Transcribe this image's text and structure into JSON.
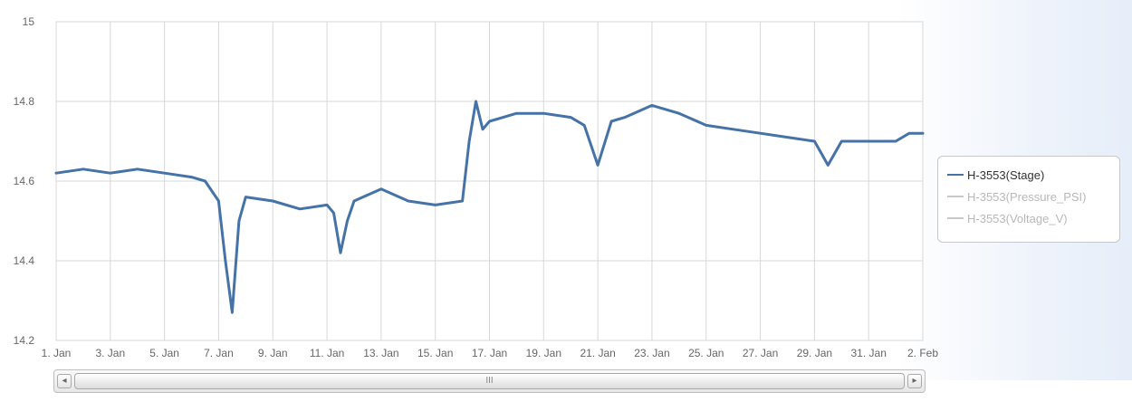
{
  "chart_data": {
    "type": "line",
    "title": "",
    "xlabel": "",
    "ylabel": "",
    "ylim": [
      14.2,
      15
    ],
    "yticks": [
      14.2,
      14.4,
      14.6,
      14.8,
      15
    ],
    "ytick_labels": [
      "14.2",
      "14.4",
      "14.6",
      "14.8",
      "15"
    ],
    "xlim": [
      "2023-01-01",
      "2023-02-02"
    ],
    "xtick_labels": [
      "1. Jan",
      "3. Jan",
      "5. Jan",
      "7. Jan",
      "9. Jan",
      "11. Jan",
      "13. Jan",
      "15. Jan",
      "17. Jan",
      "19. Jan",
      "21. Jan",
      "23. Jan",
      "25. Jan",
      "27. Jan",
      "29. Jan",
      "31. Jan",
      "2. Feb"
    ],
    "grid": true,
    "legend_position": "right",
    "series": [
      {
        "name": "H-3553(Stage)",
        "color": "#4572a7",
        "points": [
          [
            "2023-01-01",
            14.62
          ],
          [
            "2023-01-02",
            14.63
          ],
          [
            "2023-01-03",
            14.62
          ],
          [
            "2023-01-04",
            14.63
          ],
          [
            "2023-01-05",
            14.62
          ],
          [
            "2023-01-06",
            14.61
          ],
          [
            "2023-01-06 12:00",
            14.6
          ],
          [
            "2023-01-07",
            14.55
          ],
          [
            "2023-01-07 06:00",
            14.4
          ],
          [
            "2023-01-07 12:00",
            14.27
          ],
          [
            "2023-01-07 18:00",
            14.5
          ],
          [
            "2023-01-08",
            14.56
          ],
          [
            "2023-01-09",
            14.55
          ],
          [
            "2023-01-10",
            14.53
          ],
          [
            "2023-01-11",
            14.54
          ],
          [
            "2023-01-11 06:00",
            14.52
          ],
          [
            "2023-01-11 12:00",
            14.42
          ],
          [
            "2023-01-11 18:00",
            14.5
          ],
          [
            "2023-01-12",
            14.55
          ],
          [
            "2023-01-13",
            14.58
          ],
          [
            "2023-01-14",
            14.55
          ],
          [
            "2023-01-15",
            14.54
          ],
          [
            "2023-01-16",
            14.55
          ],
          [
            "2023-01-16 06:00",
            14.7
          ],
          [
            "2023-01-16 12:00",
            14.8
          ],
          [
            "2023-01-16 18:00",
            14.73
          ],
          [
            "2023-01-17",
            14.75
          ],
          [
            "2023-01-18",
            14.77
          ],
          [
            "2023-01-19",
            14.77
          ],
          [
            "2023-01-20",
            14.76
          ],
          [
            "2023-01-20 12:00",
            14.74
          ],
          [
            "2023-01-21",
            14.64
          ],
          [
            "2023-01-21 12:00",
            14.75
          ],
          [
            "2023-01-22",
            14.76
          ],
          [
            "2023-01-23",
            14.79
          ],
          [
            "2023-01-24",
            14.77
          ],
          [
            "2023-01-25",
            14.74
          ],
          [
            "2023-01-26",
            14.73
          ],
          [
            "2023-01-27",
            14.72
          ],
          [
            "2023-01-28",
            14.71
          ],
          [
            "2023-01-29",
            14.7
          ],
          [
            "2023-01-29 12:00",
            14.64
          ],
          [
            "2023-01-30",
            14.7
          ],
          [
            "2023-01-31",
            14.7
          ],
          [
            "2023-02-01",
            14.7
          ],
          [
            "2023-02-01 12:00",
            14.72
          ],
          [
            "2023-02-02",
            14.72
          ]
        ]
      },
      {
        "name": "H-3553(Pressure_PSI)",
        "color": "#b8b8b8",
        "points": []
      },
      {
        "name": "H-3553(Voltage_V)",
        "color": "#b8b8b8",
        "points": []
      }
    ]
  },
  "scrollbar": {
    "left_arrow": "◂",
    "right_arrow": "▸",
    "thumb_grip": "III"
  }
}
